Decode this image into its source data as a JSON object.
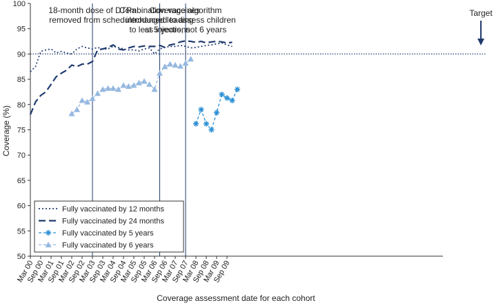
{
  "chart_data": {
    "type": "line",
    "xlabel": "Coverage assessment date for each cohort",
    "ylabel": "Coverage (%)",
    "ylim": [
      50,
      100
    ],
    "yticks": [
      50,
      55,
      60,
      65,
      70,
      75,
      80,
      85,
      90,
      95,
      100
    ],
    "x_tick_labels": [
      "Mar 00",
      "Sep 00",
      "Mar 01",
      "Sep 01",
      "Mar 02",
      "Sep 02",
      "Mar 03",
      "Sep 03",
      "Mar 04",
      "Sep 04",
      "Mar 05",
      "Sep 05",
      "Mar 06",
      "Sep 06",
      "Mar 07",
      "Sep 07",
      "Mar 08",
      "Sep 08",
      "Mar 09",
      "Sep 09"
    ],
    "target": {
      "value": 90,
      "label": "Target"
    },
    "annotations": [
      {
        "quarter": 12,
        "lines": [
          "18-month dose of DTPa",
          "removed from schedule"
        ]
      },
      {
        "quarter": 25,
        "lines": [
          "Combination vaccines",
          "introduced leading",
          "to less injections"
        ]
      },
      {
        "quarter": 30,
        "lines": [
          "Coverage algorithm",
          "changed to assess children",
          "at 5 years, not 6 years"
        ]
      }
    ],
    "legend_position": "bottom-left",
    "series": [
      {
        "name": "Fully vaccinated by 12 months",
        "color": "#1f3a6e",
        "style": "dotted",
        "start_quarter": 0,
        "values": [
          86.5,
          87.5,
          90.5,
          90.8,
          91.0,
          90.2,
          90.5,
          90.2,
          90.0,
          91.0,
          91.5,
          91.2,
          91.0,
          91.3,
          91.0,
          91.0,
          91.5,
          91.3,
          91.0,
          90.8,
          90.8,
          90.6,
          91.0,
          91.2,
          90.0,
          91.0,
          91.3,
          91.5,
          91.5,
          91.7,
          91.5,
          91.2,
          91.3,
          91.5,
          91.7,
          91.8,
          92.0,
          92.2,
          91.8,
          91.5
        ]
      },
      {
        "name": "Fully vaccinated by 24 months",
        "color": "#1f3a6e",
        "style": "dashed",
        "start_quarter": 0,
        "values": [
          78.0,
          80.5,
          81.8,
          82.5,
          84.0,
          85.5,
          86.2,
          86.8,
          87.8,
          87.5,
          88.0,
          88.0,
          88.5,
          90.8,
          91.0,
          91.3,
          91.8,
          91.0,
          90.8,
          91.2,
          91.5,
          91.4,
          91.6,
          91.5,
          91.5,
          91.7,
          91.3,
          91.8,
          92.0,
          92.4,
          92.6,
          92.5,
          92.3,
          92.5,
          92.2,
          92.4,
          92.5,
          92.4,
          92.2,
          92.3
        ]
      },
      {
        "name": "Fully vaccinated by 5 years",
        "color": "#2a8fd4",
        "style": "dashed",
        "marker": "star",
        "start_quarter": 32,
        "values": [
          76.2,
          79.0,
          76.2,
          75.0,
          78.4,
          82.0,
          81.3,
          80.8,
          83.0
        ]
      },
      {
        "name": "Fully vaccinated by 6 years",
        "color": "#95b8e0",
        "style": "dashed",
        "marker": "triangle",
        "start_quarter": 8,
        "values": [
          78.2,
          79.0,
          80.8,
          80.5,
          81.2,
          82.2,
          83.0,
          83.2,
          83.2,
          83.0,
          83.8,
          83.6,
          83.8,
          84.3,
          84.6,
          84.0,
          83.0,
          86.2,
          87.5,
          88.0,
          87.8,
          87.6,
          88.2,
          89.0
        ]
      }
    ]
  }
}
